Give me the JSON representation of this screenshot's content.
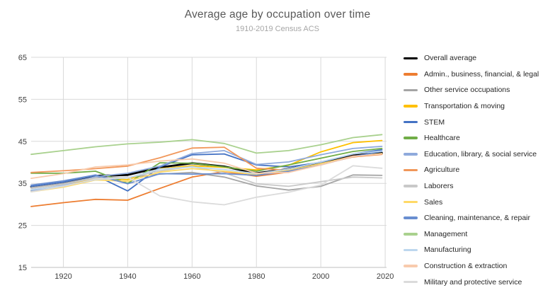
{
  "header": {
    "title": "Average age by occupation over time",
    "subtitle": "1910-2019 Census ACS"
  },
  "chart_data": {
    "type": "line",
    "title": "Average age by occupation over time",
    "subtitle": "1910-2019 Census ACS",
    "xlabel": "",
    "ylabel": "",
    "xlim": [
      1910,
      2020
    ],
    "ylim": [
      15,
      65
    ],
    "xticks": [
      1920,
      1940,
      1960,
      1980,
      2000,
      2020
    ],
    "yticks": [
      15,
      25,
      35,
      45,
      55,
      65
    ],
    "grid": true,
    "legend_position": "right",
    "x": [
      1910,
      1920,
      1930,
      1940,
      1950,
      1960,
      1970,
      1980,
      1990,
      2000,
      2010,
      2019
    ],
    "series": [
      {
        "name": "Overall average",
        "color": "#000000",
        "width": 2.8,
        "values": [
          34.2,
          35.1,
          36.8,
          37.0,
          38.8,
          39.8,
          39.0,
          37.4,
          38.4,
          40.0,
          41.8,
          42.2
        ]
      },
      {
        "name": "Admin., business, financial, & legal",
        "color": "#ED7D31",
        "width": 1.8,
        "values": [
          29.5,
          30.4,
          31.2,
          31.0,
          33.8,
          36.5,
          37.8,
          36.7,
          37.7,
          39.5,
          41.3,
          41.9
        ]
      },
      {
        "name": "Other service occupations",
        "color": "#A5A5A5",
        "width": 1.8,
        "values": [
          34.0,
          35.0,
          36.5,
          36.4,
          37.2,
          37.6,
          36.5,
          34.4,
          33.4,
          34.3,
          37.0,
          36.9
        ]
      },
      {
        "name": "Transportation & moving",
        "color": "#FFC000",
        "width": 1.8,
        "values": [
          33.4,
          34.5,
          36.2,
          35.9,
          38.5,
          39.2,
          38.8,
          38.2,
          39.3,
          42.5,
          44.7,
          45.2
        ]
      },
      {
        "name": "STEM",
        "color": "#4472C4",
        "width": 1.8,
        "values": [
          34.3,
          35.3,
          36.9,
          33.2,
          38.9,
          41.8,
          42.0,
          39.4,
          38.9,
          40.0,
          42.0,
          43.0
        ]
      },
      {
        "name": "Healthcare",
        "color": "#70AD47",
        "width": 1.8,
        "values": [
          37.4,
          37.4,
          37.9,
          35.0,
          39.9,
          39.8,
          38.9,
          37.9,
          39.4,
          41.0,
          42.6,
          43.3
        ]
      },
      {
        "name": "Education, library, & social service",
        "color": "#8FAADC",
        "width": 1.8,
        "values": [
          33.2,
          34.6,
          36.6,
          37.4,
          39.1,
          42.1,
          42.8,
          39.5,
          40.1,
          41.8,
          43.3,
          43.8
        ]
      },
      {
        "name": "Agriculture",
        "color": "#F1975A",
        "width": 1.8,
        "values": [
          37.6,
          38.0,
          38.5,
          39.1,
          41.1,
          43.4,
          43.6,
          38.6,
          38.1,
          39.6,
          41.5,
          42.0
        ]
      },
      {
        "name": "Laborers",
        "color": "#C9C9C9",
        "width": 1.8,
        "values": [
          33.8,
          34.8,
          36.3,
          36.3,
          38.0,
          39.0,
          37.5,
          34.9,
          34.3,
          35.4,
          36.5,
          36.3
        ]
      },
      {
        "name": "Sales",
        "color": "#FFD966",
        "width": 1.8,
        "values": [
          33.0,
          34.1,
          35.8,
          35.5,
          37.7,
          38.5,
          37.9,
          37.1,
          38.1,
          39.7,
          41.4,
          42.1
        ]
      },
      {
        "name": "Cleaning, maintenance, & repair",
        "color": "#698ED0",
        "width": 1.8,
        "values": [
          34.6,
          35.6,
          37.0,
          34.9,
          37.3,
          37.2,
          37.3,
          36.9,
          37.9,
          39.4,
          41.4,
          42.6
        ]
      },
      {
        "name": "Management",
        "color": "#A9D18E",
        "width": 1.8,
        "values": [
          41.9,
          42.8,
          43.7,
          44.4,
          44.8,
          45.4,
          44.5,
          42.2,
          42.8,
          44.2,
          45.9,
          46.6
        ]
      },
      {
        "name": "Manufacturing",
        "color": "#BDD7EE",
        "width": 1.8,
        "values": [
          33.5,
          34.4,
          35.9,
          36.3,
          38.4,
          38.9,
          38.3,
          37.3,
          38.4,
          40.1,
          42.0,
          42.7
        ]
      },
      {
        "name": "Construction & extraction",
        "color": "#F8CBAD",
        "width": 1.8,
        "values": [
          36.2,
          37.3,
          38.9,
          39.4,
          40.3,
          40.8,
          39.8,
          37.4,
          37.6,
          39.4,
          41.4,
          42.0
        ]
      },
      {
        "name": "Military and protective service",
        "color": "#DBDBDB",
        "width": 1.8,
        "values": [
          33.0,
          34.3,
          36.0,
          36.5,
          32.0,
          30.6,
          29.9,
          31.7,
          32.9,
          34.6,
          39.2,
          38.6
        ]
      }
    ]
  },
  "colors": {
    "gridline": "#d9d9d9",
    "axis_line": "#bfbfbf",
    "tick_label": "#3f3f3f",
    "title": "#595959",
    "subtitle": "#a6a6a6",
    "legend_text": "#262626"
  }
}
